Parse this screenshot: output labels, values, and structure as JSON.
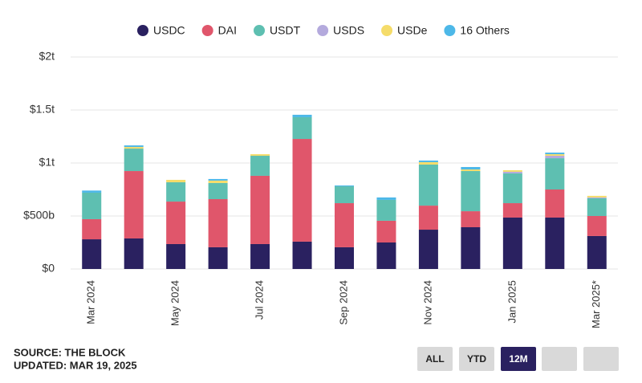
{
  "chart_data": {
    "type": "stacked_bar",
    "categories": [
      "Mar 2024",
      null,
      "May 2024",
      null,
      "Jul 2024",
      null,
      "Sep 2024",
      null,
      "Nov 2024",
      null,
      "Jan 2025",
      null,
      "Mar 2025*"
    ],
    "series": [
      {
        "name": "USDC",
        "color": "#2a2160",
        "values": [
          280,
          288,
          235,
          205,
          235,
          258,
          205,
          250,
          371,
          394,
          485,
          485,
          311
        ]
      },
      {
        "name": "DAI",
        "color": "#e0566b",
        "values": [
          190,
          636,
          401,
          454,
          644,
          969,
          416,
          205,
          227,
          151,
          136,
          265,
          189
        ]
      },
      {
        "name": "USDT",
        "color": "#5ebfb1",
        "values": [
          250,
          212,
          182,
          152,
          189,
          205,
          159,
          197,
          387,
          379,
          281,
          295,
          167
        ]
      },
      {
        "name": "USDS",
        "color": "#b4aadd",
        "values": [
          0,
          0,
          0,
          0,
          0,
          0,
          0,
          0,
          0,
          0,
          15,
          23,
          8
        ]
      },
      {
        "name": "USDe",
        "color": "#f5dc6a",
        "values": [
          0,
          15,
          23,
          23,
          15,
          0,
          0,
          0,
          23,
          15,
          15,
          15,
          15
        ]
      },
      {
        "name": "16 Others",
        "color": "#4db8e8",
        "values": [
          20,
          15,
          0,
          15,
          0,
          23,
          8,
          23,
          15,
          23,
          0,
          15,
          0
        ]
      }
    ],
    "ylim": [
      0,
      2000
    ],
    "yticks": [
      {
        "value": 0,
        "label": "$0"
      },
      {
        "value": 500,
        "label": "$500b"
      },
      {
        "value": 1000,
        "label": "$1t"
      },
      {
        "value": 1500,
        "label": "$1.5t"
      },
      {
        "value": 2000,
        "label": "$2t"
      }
    ],
    "grid": true,
    "legend": "top"
  },
  "source": "SOURCE: THE BLOCK",
  "updated": "UPDATED: MAR 19, 2025",
  "buttons": [
    "ALL",
    "YTD",
    "12M"
  ],
  "active_button": 2
}
